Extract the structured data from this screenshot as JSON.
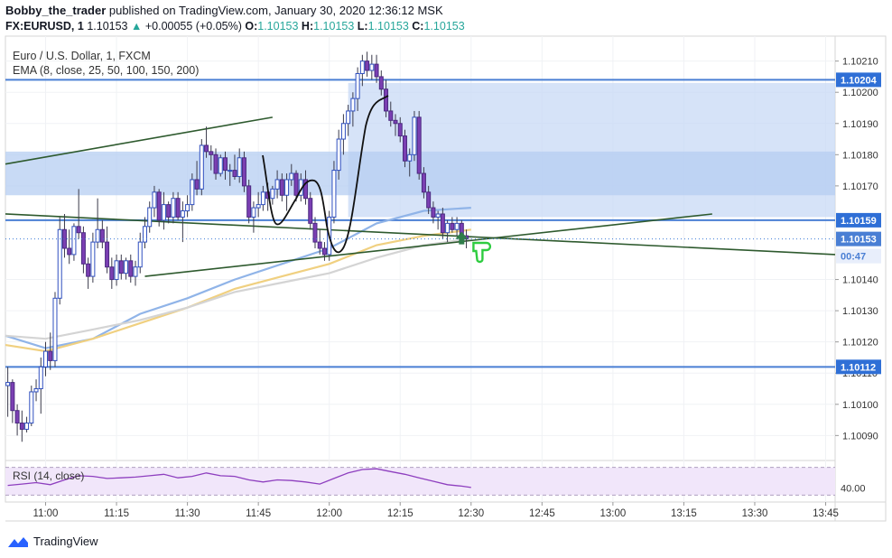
{
  "header": {
    "author": "Bobby_the_trader",
    "published_text": " published on TradingView.com, January 30, 2020 12:36:12 MSK",
    "symbol": "FX:EURUSD, 1",
    "last": "1.10153",
    "change_arrow": "▲",
    "change": "+0.00055 (+0.05%)",
    "o_label": "O:",
    "o": "1.10153",
    "h_label": "H:",
    "h": "1.10153",
    "l_label": "L:",
    "l": "1.10153",
    "c_label": "C:",
    "c": "1.10153"
  },
  "legend": {
    "title": "Euro / U.S. Dollar, 1, FXCM",
    "ema": "EMA (8, close, 25, 50, 100, 150, 200)",
    "rsi": "RSI (14, close)"
  },
  "price_axis": {
    "ticks": [
      "1.10210",
      "1.10200",
      "1.10190",
      "1.10180",
      "1.10170",
      "1.10140",
      "1.10130",
      "1.10120",
      "1.10110",
      "1.10100",
      "1.10090"
    ],
    "tick_values": [
      1.1021,
      1.102,
      1.1019,
      1.1018,
      1.1017,
      1.1014,
      1.1013,
      1.1012,
      1.1011,
      1.101,
      1.1009
    ],
    "badges": [
      {
        "label": "1.10204",
        "value": 1.10204,
        "kind": "level"
      },
      {
        "label": "1.10159",
        "value": 1.10159,
        "kind": "level"
      },
      {
        "label": "1.10153",
        "value": 1.10153,
        "kind": "price"
      },
      {
        "label": "00:47",
        "value": 1.101475,
        "kind": "timer"
      },
      {
        "label": "1.10112",
        "value": 1.10112,
        "kind": "level"
      }
    ]
  },
  "rsi_axis": {
    "ticks": [
      "40.00"
    ]
  },
  "time_axis": {
    "ticks": [
      "11:00",
      "11:15",
      "11:30",
      "11:45",
      "12:00",
      "12:15",
      "12:30",
      "12:45",
      "13:00",
      "13:15",
      "13:30",
      "13:45"
    ],
    "tick_minutes": [
      60,
      75,
      90,
      105,
      120,
      135,
      150,
      165,
      180,
      195,
      210,
      225
    ]
  },
  "chart_data": {
    "type": "candlestick",
    "symbol": "EURUSD",
    "timeframe_minutes": 1,
    "x_unit": "minutes after 10:00",
    "y_range": [
      1.10082,
      1.10218
    ],
    "x_range": [
      51.5,
      227
    ],
    "candles": [
      {
        "t": 52,
        "o": 1.10106,
        "h": 1.10112,
        "l": 1.10096,
        "c": 1.10107
      },
      {
        "t": 53,
        "o": 1.10107,
        "h": 1.10108,
        "l": 1.10094,
        "c": 1.10098
      },
      {
        "t": 54,
        "o": 1.10098,
        "h": 1.101,
        "l": 1.1009,
        "c": 1.10094
      },
      {
        "t": 55,
        "o": 1.10094,
        "h": 1.10098,
        "l": 1.10088,
        "c": 1.10092
      },
      {
        "t": 56,
        "o": 1.10092,
        "h": 1.10096,
        "l": 1.10091,
        "c": 1.10094
      },
      {
        "t": 57,
        "o": 1.10094,
        "h": 1.10106,
        "l": 1.10093,
        "c": 1.10104
      },
      {
        "t": 58,
        "o": 1.10104,
        "h": 1.10108,
        "l": 1.10101,
        "c": 1.10105
      },
      {
        "t": 59,
        "o": 1.10105,
        "h": 1.10115,
        "l": 1.10097,
        "c": 1.10112
      },
      {
        "t": 60,
        "o": 1.10112,
        "h": 1.1012,
        "l": 1.10109,
        "c": 1.10117
      },
      {
        "t": 61,
        "o": 1.10117,
        "h": 1.10123,
        "l": 1.10111,
        "c": 1.10114
      },
      {
        "t": 62,
        "o": 1.10114,
        "h": 1.10136,
        "l": 1.10112,
        "c": 1.10134
      },
      {
        "t": 63,
        "o": 1.10134,
        "h": 1.1016,
        "l": 1.10132,
        "c": 1.10156
      },
      {
        "t": 64,
        "o": 1.10156,
        "h": 1.10161,
        "l": 1.10147,
        "c": 1.1015
      },
      {
        "t": 65,
        "o": 1.1015,
        "h": 1.10156,
        "l": 1.10145,
        "c": 1.10148
      },
      {
        "t": 66,
        "o": 1.10148,
        "h": 1.10158,
        "l": 1.10146,
        "c": 1.10157
      },
      {
        "t": 67,
        "o": 1.10157,
        "h": 1.10169,
        "l": 1.10153,
        "c": 1.10155
      },
      {
        "t": 68,
        "o": 1.10155,
        "h": 1.10157,
        "l": 1.10142,
        "c": 1.10145
      },
      {
        "t": 69,
        "o": 1.10145,
        "h": 1.10147,
        "l": 1.10137,
        "c": 1.10141
      },
      {
        "t": 70,
        "o": 1.10141,
        "h": 1.10155,
        "l": 1.10139,
        "c": 1.10152
      },
      {
        "t": 71,
        "o": 1.10152,
        "h": 1.10166,
        "l": 1.1015,
        "c": 1.10156
      },
      {
        "t": 72,
        "o": 1.10156,
        "h": 1.10159,
        "l": 1.1015,
        "c": 1.10152
      },
      {
        "t": 73,
        "o": 1.10152,
        "h": 1.10157,
        "l": 1.10142,
        "c": 1.10144
      },
      {
        "t": 74,
        "o": 1.10144,
        "h": 1.10147,
        "l": 1.10137,
        "c": 1.1014
      },
      {
        "t": 75,
        "o": 1.1014,
        "h": 1.10148,
        "l": 1.10138,
        "c": 1.10146
      },
      {
        "t": 76,
        "o": 1.10146,
        "h": 1.10148,
        "l": 1.1014,
        "c": 1.10142
      },
      {
        "t": 77,
        "o": 1.10142,
        "h": 1.10147,
        "l": 1.1014,
        "c": 1.10146
      },
      {
        "t": 78,
        "o": 1.10146,
        "h": 1.10148,
        "l": 1.10139,
        "c": 1.10141
      },
      {
        "t": 79,
        "o": 1.10141,
        "h": 1.10146,
        "l": 1.10138,
        "c": 1.10144
      },
      {
        "t": 80,
        "o": 1.10144,
        "h": 1.10155,
        "l": 1.10142,
        "c": 1.10152
      },
      {
        "t": 81,
        "o": 1.10152,
        "h": 1.1016,
        "l": 1.1015,
        "c": 1.10157
      },
      {
        "t": 82,
        "o": 1.10157,
        "h": 1.10165,
        "l": 1.10155,
        "c": 1.10163
      },
      {
        "t": 83,
        "o": 1.10163,
        "h": 1.1017,
        "l": 1.1016,
        "c": 1.10168
      },
      {
        "t": 84,
        "o": 1.10168,
        "h": 1.10169,
        "l": 1.10157,
        "c": 1.10159
      },
      {
        "t": 85,
        "o": 1.10159,
        "h": 1.10168,
        "l": 1.10156,
        "c": 1.10164
      },
      {
        "t": 86,
        "o": 1.10164,
        "h": 1.10165,
        "l": 1.10158,
        "c": 1.1016
      },
      {
        "t": 87,
        "o": 1.1016,
        "h": 1.10168,
        "l": 1.10158,
        "c": 1.10166
      },
      {
        "t": 88,
        "o": 1.10166,
        "h": 1.10168,
        "l": 1.10159,
        "c": 1.1016
      },
      {
        "t": 89,
        "o": 1.1016,
        "h": 1.10165,
        "l": 1.10152,
        "c": 1.10162
      },
      {
        "t": 90,
        "o": 1.10162,
        "h": 1.10167,
        "l": 1.1016,
        "c": 1.10164
      },
      {
        "t": 91,
        "o": 1.10164,
        "h": 1.10174,
        "l": 1.10162,
        "c": 1.10172
      },
      {
        "t": 92,
        "o": 1.10172,
        "h": 1.10178,
        "l": 1.10167,
        "c": 1.10169
      },
      {
        "t": 93,
        "o": 1.10169,
        "h": 1.10185,
        "l": 1.10167,
        "c": 1.10183
      },
      {
        "t": 94,
        "o": 1.10183,
        "h": 1.10189,
        "l": 1.10179,
        "c": 1.10181
      },
      {
        "t": 95,
        "o": 1.10181,
        "h": 1.10183,
        "l": 1.10175,
        "c": 1.1018
      },
      {
        "t": 96,
        "o": 1.1018,
        "h": 1.10182,
        "l": 1.10172,
        "c": 1.10174
      },
      {
        "t": 97,
        "o": 1.10174,
        "h": 1.1018,
        "l": 1.10173,
        "c": 1.10179
      },
      {
        "t": 98,
        "o": 1.10179,
        "h": 1.10181,
        "l": 1.10172,
        "c": 1.10175
      },
      {
        "t": 99,
        "o": 1.10175,
        "h": 1.10177,
        "l": 1.1017,
        "c": 1.10175
      },
      {
        "t": 100,
        "o": 1.10175,
        "h": 1.1018,
        "l": 1.10172,
        "c": 1.10173
      },
      {
        "t": 101,
        "o": 1.10173,
        "h": 1.10182,
        "l": 1.10171,
        "c": 1.10179
      },
      {
        "t": 102,
        "o": 1.10179,
        "h": 1.10181,
        "l": 1.10168,
        "c": 1.1017
      },
      {
        "t": 103,
        "o": 1.1017,
        "h": 1.10172,
        "l": 1.10158,
        "c": 1.1016
      },
      {
        "t": 104,
        "o": 1.1016,
        "h": 1.10165,
        "l": 1.10155,
        "c": 1.10163
      },
      {
        "t": 105,
        "o": 1.10163,
        "h": 1.10168,
        "l": 1.1016,
        "c": 1.10164
      },
      {
        "t": 106,
        "o": 1.10164,
        "h": 1.1017,
        "l": 1.10162,
        "c": 1.10168
      },
      {
        "t": 107,
        "o": 1.10168,
        "h": 1.10171,
        "l": 1.10162,
        "c": 1.10166
      },
      {
        "t": 108,
        "o": 1.10166,
        "h": 1.1017,
        "l": 1.10164,
        "c": 1.10169
      },
      {
        "t": 109,
        "o": 1.10169,
        "h": 1.10175,
        "l": 1.10166,
        "c": 1.10172
      },
      {
        "t": 110,
        "o": 1.10172,
        "h": 1.10174,
        "l": 1.10165,
        "c": 1.10167
      },
      {
        "t": 111,
        "o": 1.10167,
        "h": 1.10174,
        "l": 1.10162,
        "c": 1.10172
      },
      {
        "t": 112,
        "o": 1.10172,
        "h": 1.10177,
        "l": 1.1017,
        "c": 1.10174
      },
      {
        "t": 113,
        "o": 1.10174,
        "h": 1.10175,
        "l": 1.10165,
        "c": 1.10167
      },
      {
        "t": 114,
        "o": 1.10167,
        "h": 1.10174,
        "l": 1.10165,
        "c": 1.10172
      },
      {
        "t": 115,
        "o": 1.10172,
        "h": 1.10175,
        "l": 1.10164,
        "c": 1.10166
      },
      {
        "t": 116,
        "o": 1.10166,
        "h": 1.10168,
        "l": 1.10156,
        "c": 1.10158
      },
      {
        "t": 117,
        "o": 1.10158,
        "h": 1.1016,
        "l": 1.1015,
        "c": 1.10152
      },
      {
        "t": 118,
        "o": 1.10152,
        "h": 1.10156,
        "l": 1.10148,
        "c": 1.1015
      },
      {
        "t": 119,
        "o": 1.1015,
        "h": 1.10152,
        "l": 1.10146,
        "c": 1.10148
      },
      {
        "t": 120,
        "o": 1.10148,
        "h": 1.10162,
        "l": 1.10146,
        "c": 1.1016
      },
      {
        "t": 121,
        "o": 1.1016,
        "h": 1.10178,
        "l": 1.10158,
        "c": 1.10175
      },
      {
        "t": 122,
        "o": 1.10175,
        "h": 1.10188,
        "l": 1.10172,
        "c": 1.10185
      },
      {
        "t": 123,
        "o": 1.10185,
        "h": 1.10193,
        "l": 1.1018,
        "c": 1.1019
      },
      {
        "t": 124,
        "o": 1.1019,
        "h": 1.10196,
        "l": 1.10186,
        "c": 1.10194
      },
      {
        "t": 125,
        "o": 1.10194,
        "h": 1.102,
        "l": 1.10189,
        "c": 1.10198
      },
      {
        "t": 126,
        "o": 1.10198,
        "h": 1.10208,
        "l": 1.10194,
        "c": 1.10206
      },
      {
        "t": 127,
        "o": 1.10206,
        "h": 1.10212,
        "l": 1.10202,
        "c": 1.1021
      },
      {
        "t": 128,
        "o": 1.1021,
        "h": 1.10213,
        "l": 1.10205,
        "c": 1.10207
      },
      {
        "t": 129,
        "o": 1.10207,
        "h": 1.10212,
        "l": 1.10204,
        "c": 1.10209
      },
      {
        "t": 130,
        "o": 1.10209,
        "h": 1.10212,
        "l": 1.10203,
        "c": 1.10205
      },
      {
        "t": 131,
        "o": 1.10205,
        "h": 1.10207,
        "l": 1.10199,
        "c": 1.10201
      },
      {
        "t": 132,
        "o": 1.10201,
        "h": 1.10204,
        "l": 1.10192,
        "c": 1.10194
      },
      {
        "t": 133,
        "o": 1.10194,
        "h": 1.10197,
        "l": 1.10189,
        "c": 1.10191
      },
      {
        "t": 134,
        "o": 1.10191,
        "h": 1.10193,
        "l": 1.10186,
        "c": 1.1019
      },
      {
        "t": 135,
        "o": 1.1019,
        "h": 1.10192,
        "l": 1.10184,
        "c": 1.10186
      },
      {
        "t": 136,
        "o": 1.10186,
        "h": 1.10188,
        "l": 1.10176,
        "c": 1.10178
      },
      {
        "t": 137,
        "o": 1.10178,
        "h": 1.10182,
        "l": 1.10173,
        "c": 1.1018
      },
      {
        "t": 138,
        "o": 1.1018,
        "h": 1.10194,
        "l": 1.10178,
        "c": 1.10192
      },
      {
        "t": 139,
        "o": 1.10192,
        "h": 1.10194,
        "l": 1.10172,
        "c": 1.10174
      },
      {
        "t": 140,
        "o": 1.10174,
        "h": 1.10176,
        "l": 1.10166,
        "c": 1.10168
      },
      {
        "t": 141,
        "o": 1.10168,
        "h": 1.1017,
        "l": 1.10161,
        "c": 1.10163
      },
      {
        "t": 142,
        "o": 1.10163,
        "h": 1.10165,
        "l": 1.10158,
        "c": 1.1016
      },
      {
        "t": 143,
        "o": 1.1016,
        "h": 1.10162,
        "l": 1.10156,
        "c": 1.10161
      },
      {
        "t": 144,
        "o": 1.10161,
        "h": 1.10163,
        "l": 1.10153,
        "c": 1.10155
      },
      {
        "t": 145,
        "o": 1.10155,
        "h": 1.10159,
        "l": 1.10152,
        "c": 1.10158
      },
      {
        "t": 146,
        "o": 1.10158,
        "h": 1.1016,
        "l": 1.10155,
        "c": 1.10156
      },
      {
        "t": 147,
        "o": 1.10156,
        "h": 1.1016,
        "l": 1.10154,
        "c": 1.10158
      },
      {
        "t": 148,
        "o": 1.10158,
        "h": 1.10159,
        "l": 1.10152,
        "c": 1.10154
      },
      {
        "t": 149,
        "o": 1.10154,
        "h": 1.10156,
        "l": 1.1015,
        "c": 1.10153
      }
    ],
    "ema_lines": [
      {
        "name": "EMA 100",
        "color": "#90b4e8",
        "points": [
          [
            51.5,
            1.10122
          ],
          [
            60,
            1.10118
          ],
          [
            70,
            1.10121
          ],
          [
            80,
            1.10129
          ],
          [
            90,
            1.10134
          ],
          [
            100,
            1.1014
          ],
          [
            110,
            1.10145
          ],
          [
            120,
            1.1015
          ],
          [
            130,
            1.10158
          ],
          [
            140,
            1.10162
          ],
          [
            150,
            1.10163
          ]
        ]
      },
      {
        "name": "EMA 150",
        "color": "#f0d080",
        "points": [
          [
            51.5,
            1.10119
          ],
          [
            60,
            1.10117
          ],
          [
            70,
            1.10121
          ],
          [
            80,
            1.10126
          ],
          [
            90,
            1.10131
          ],
          [
            100,
            1.10137
          ],
          [
            110,
            1.10141
          ],
          [
            120,
            1.10145
          ],
          [
            130,
            1.10151
          ],
          [
            140,
            1.10154
          ],
          [
            150,
            1.10156
          ]
        ]
      },
      {
        "name": "EMA 200",
        "color": "#d4d4d4",
        "points": [
          [
            51.5,
            1.10122
          ],
          [
            60,
            1.10121
          ],
          [
            70,
            1.10124
          ],
          [
            80,
            1.10127
          ],
          [
            90,
            1.10131
          ],
          [
            100,
            1.10136
          ],
          [
            110,
            1.10139
          ],
          [
            120,
            1.10142
          ],
          [
            130,
            1.10147
          ],
          [
            140,
            1.10151
          ],
          [
            150,
            1.10153
          ]
        ]
      }
    ],
    "horizontal_levels": [
      {
        "name": "level-1.10204",
        "value": 1.10204,
        "color": "#4a7fd4"
      },
      {
        "name": "level-1.10159",
        "value": 1.10159,
        "color": "#4a7fd4"
      },
      {
        "name": "level-1.10112",
        "value": 1.10112,
        "color": "#4a7fd4"
      }
    ],
    "zones": [
      {
        "name": "upper-zone",
        "t0": 124,
        "t1": 227,
        "y0": 1.10203,
        "y1": 1.1016,
        "color": "#c8daf5"
      },
      {
        "name": "middle-zone",
        "t0": 51.5,
        "t1": 227,
        "y0": 1.10181,
        "y1": 1.10167,
        "color": "#b6cdf2"
      }
    ],
    "trendlines": [
      {
        "name": "trendline-upper-channel",
        "color": "#2e5a2e",
        "points": [
          [
            51.5,
            1.10177
          ],
          [
            108,
            1.10192
          ]
        ]
      },
      {
        "name": "trendline-lower-channel",
        "color": "#2e5a2e",
        "points": [
          [
            81,
            1.10141
          ],
          [
            201,
            1.10161
          ]
        ]
      },
      {
        "name": "trendline-descending",
        "color": "#2e5a2e",
        "points": [
          [
            51.5,
            1.10161
          ],
          [
            227,
            1.10148
          ]
        ]
      }
    ],
    "rsi": {
      "name": "RSI (14, close)",
      "y_range": [
        20,
        80
      ],
      "upper_band": 70,
      "lower_band": 30,
      "points": [
        [
          52,
          44
        ],
        [
          55,
          46
        ],
        [
          58,
          48
        ],
        [
          61,
          45
        ],
        [
          64,
          52
        ],
        [
          67,
          58
        ],
        [
          70,
          57
        ],
        [
          73,
          54
        ],
        [
          76,
          55
        ],
        [
          79,
          56
        ],
        [
          82,
          58
        ],
        [
          85,
          60
        ],
        [
          88,
          55
        ],
        [
          91,
          57
        ],
        [
          94,
          62
        ],
        [
          97,
          58
        ],
        [
          100,
          57
        ],
        [
          103,
          52
        ],
        [
          106,
          49
        ],
        [
          109,
          52
        ],
        [
          112,
          51
        ],
        [
          115,
          49
        ],
        [
          118,
          46
        ],
        [
          121,
          54
        ],
        [
          124,
          62
        ],
        [
          127,
          67
        ],
        [
          130,
          68
        ],
        [
          133,
          64
        ],
        [
          136,
          60
        ],
        [
          139,
          55
        ],
        [
          142,
          50
        ],
        [
          145,
          45
        ],
        [
          148,
          43
        ],
        [
          150,
          41
        ]
      ]
    },
    "annotations": [
      {
        "name": "up-arrow-marker",
        "t": 148,
        "y": 1.10153,
        "color": "#2f7d4a"
      },
      {
        "name": "thumbs-down-marker",
        "t": 150.5,
        "y": 1.1015,
        "color": "#2ecc40"
      }
    ]
  }
}
